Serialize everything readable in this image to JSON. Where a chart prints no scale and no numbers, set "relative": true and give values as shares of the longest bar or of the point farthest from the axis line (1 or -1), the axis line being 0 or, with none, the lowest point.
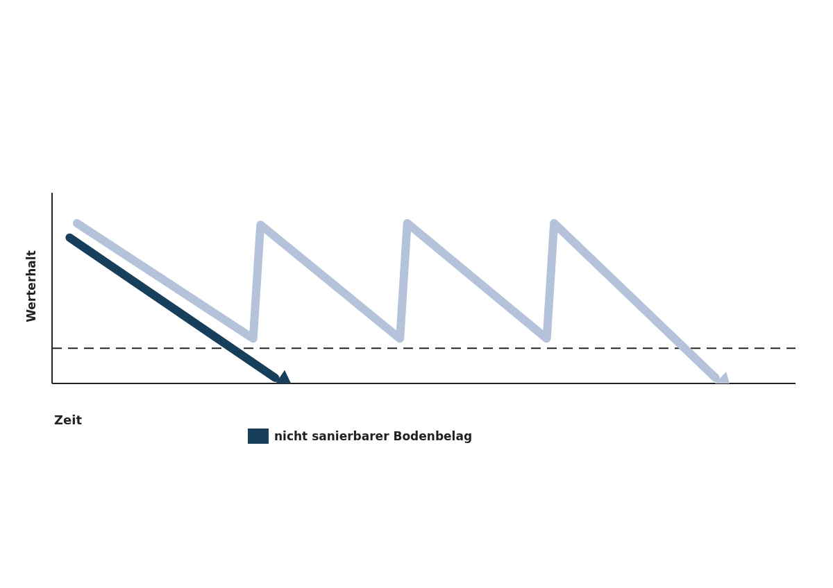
{
  "chart_data": {
    "type": "line",
    "xlabel": "Zeit",
    "ylabel": "Werterhalt",
    "relative": true,
    "legend": "bottom",
    "marker": "none",
    "line_style": "solid",
    "categories": [
      null,
      null,
      null,
      null,
      null,
      null,
      null,
      null,
      null,
      null,
      null,
      null,
      null,
      null,
      null,
      null,
      null,
      null,
      null,
      null,
      null,
      null,
      null,
      null,
      null,
      null,
      null,
      null,
      null,
      null,
      null,
      null,
      null,
      null,
      null,
      null,
      null,
      null,
      null,
      null,
      null,
      null,
      null,
      null,
      null,
      null,
      null,
      null,
      null,
      null,
      null,
      null,
      null,
      null,
      null,
      null,
      null,
      null,
      null,
      null,
      null,
      null,
      null,
      null,
      null,
      null,
      null,
      null,
      null,
      null,
      null,
      null,
      null,
      null,
      null,
      null,
      null,
      null,
      null,
      null,
      null,
      null,
      null,
      null,
      null,
      null,
      null,
      null,
      null,
      null,
      null,
      null,
      null,
      null,
      null,
      null,
      null,
      null,
      null
    ],
    "series": [
      {
        "name": "nicht sanierbarer Bodenbelag",
        "color": "#173f5c",
        "values": [
          0.91,
          null,
          null,
          null,
          null,
          null,
          null,
          null,
          null,
          null,
          null,
          null,
          null,
          null,
          null,
          null,
          null,
          null,
          null,
          null,
          null,
          null,
          null,
          null,
          null,
          null,
          null,
          null,
          0.035,
          null,
          null,
          null,
          null,
          null,
          null,
          null,
          null,
          null,
          null,
          null,
          null,
          null,
          null,
          null,
          null,
          null,
          null,
          null,
          null,
          null,
          null,
          null,
          null,
          null,
          null,
          null,
          null,
          null,
          null,
          null,
          null,
          null,
          null,
          null,
          null,
          null,
          null,
          null,
          null,
          null,
          null,
          null,
          null,
          null,
          null,
          null,
          null,
          null,
          null,
          null,
          null,
          null,
          null,
          null,
          null,
          null,
          null,
          null,
          null,
          null,
          null,
          null,
          null,
          null,
          null,
          null,
          null,
          null,
          null
        ]
      },
      {
        "color": "#b4c3d9",
        "values": [
          null,
          1,
          null,
          null,
          null,
          null,
          null,
          null,
          null,
          null,
          null,
          null,
          null,
          null,
          null,
          null,
          null,
          null,
          null,
          null,
          null,
          null,
          null,
          null,
          null,
          0.28,
          0.99,
          null,
          null,
          null,
          null,
          null,
          null,
          null,
          null,
          null,
          null,
          null,
          null,
          null,
          null,
          null,
          null,
          null,
          null,
          0.28,
          1,
          null,
          null,
          null,
          null,
          null,
          null,
          null,
          null,
          null,
          null,
          null,
          null,
          null,
          null,
          null,
          null,
          null,
          null,
          0.28,
          1,
          null,
          null,
          null,
          null,
          null,
          null,
          null,
          null,
          null,
          null,
          null,
          null,
          null,
          null,
          null,
          null,
          null,
          null,
          null,
          null,
          null,
          0.035,
          null,
          null,
          null,
          null,
          null,
          null,
          null,
          null,
          null,
          null
        ]
      }
    ],
    "ref_lines": [
      {
        "axis": "y",
        "value": 0.22,
        "color": "#222222",
        "line_style": "dashed"
      }
    ]
  }
}
